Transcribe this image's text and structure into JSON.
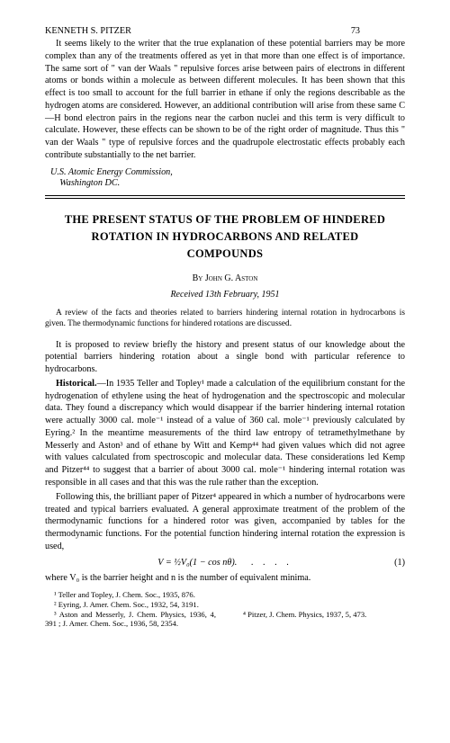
{
  "header": {
    "running_author": "KENNETH S. PITZER",
    "page_number": "73"
  },
  "prev_article_tail": {
    "paragraph": "It seems likely to the writer that the true explanation of these potential barriers may be more complex than any of the treatments offered as yet in that more than one effect is of importance. The same sort of \" van der Waals \" repulsive forces arise between pairs of electrons in different atoms or bonds within a molecule as between different molecules. It has been shown that this effect is too small to account for the full barrier in ethane if only the regions describable as the hydrogen atoms are considered. However, an additional contribution will arise from these same C—H bond electron pairs in the regions near the carbon nuclei and this term is very difficult to calculate. However, these effects can be shown to be of the right order of magnitude. Thus this \" van der Waals \" type of repulsive forces and the quadrupole electrostatic effects probably each contribute substantially to the net barrier.",
    "affiliation_line1": "U.S. Atomic Energy Commission,",
    "affiliation_line2": "Washington DC."
  },
  "article": {
    "title": "THE PRESENT STATUS OF THE PROBLEM OF HINDERED ROTATION IN HYDROCARBONS AND RELATED COMPOUNDS",
    "by_prefix": "By ",
    "author": "John G. Aston",
    "received": "Received 13th February, 1951",
    "abstract": "A review of the facts and theories related to barriers hindering internal rotation in hydrocarbons is given. The thermodynamic functions for hindered rotations are discussed.",
    "intro_para": "It is proposed to review briefly the history and present status of our knowledge about the potential barriers hindering rotation about a single bond with particular reference to hydrocarbons.",
    "historical_head": "Historical.",
    "historical_body": "—In 1935 Teller and Topley¹ made a calculation of the equilibrium constant for the hydrogenation of ethylene using the heat of hydrogenation and the spectroscopic and molecular data. They found a discrepancy which would disappear if the barrier hindering internal rotation were actually 3000 cal. mole⁻¹ instead of a value of 360 cal. mole⁻¹ previously calculated by Eyring.² In the meantime measurements of the third law entropy of tetramethylmethane by Messerly and Aston³ and of ethane by Witt and Kemp⁴⁴ had given values which did not agree with values calculated from spectroscopic and molecular data. These considerations led Kemp and Pitzer⁴⁴ to suggest that a barrier of about 3000 cal. mole⁻¹ hindering internal rotation was responsible in all cases and that this was the rule rather than the exception.",
    "following_para": "Following this, the brilliant paper of Pitzer⁴ appeared in which a number of hydrocarbons were treated and typical barriers evaluated. A general approximate treatment of the problem of the thermodynamic functions for a hindered rotor was given, accompanied by tables for the thermodynamic functions. For the potential function hindering internal rotation the expression is used,",
    "equation": "V = ½V₀(1 − cos nθ).",
    "equation_number": "(1)",
    "post_eq": "where V₀ is the barrier height and n is the number of equivalent minima."
  },
  "footnotes": {
    "fn1": "¹ Teller and Topley, J. Chem. Soc., 1935, 876.",
    "fn2": "² Eyring, J. Amer. Chem. Soc., 1932, 54, 3191.",
    "fn3_left": "³ Aston and Messerly, J. Chem. Physics, 1936, 4, 391 ; J. Amer. Chem. Soc., 1936, 58, 2354.",
    "fn4_right": "⁴ Pitzer, J. Chem. Physics, 1937, 5, 473."
  }
}
